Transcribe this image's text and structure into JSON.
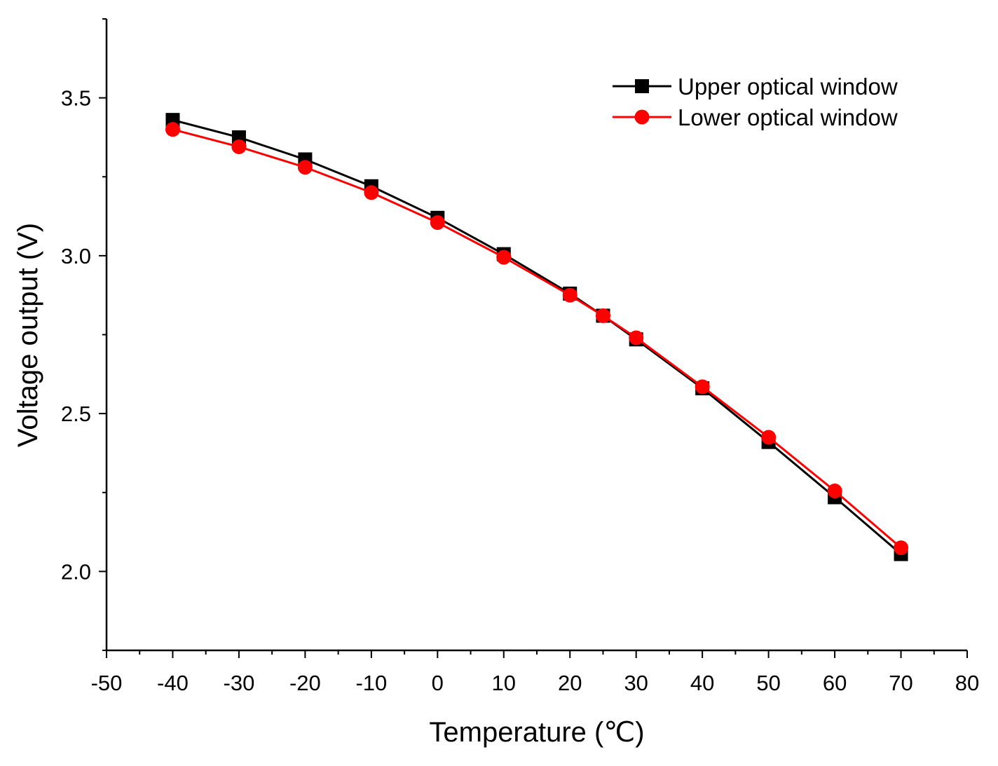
{
  "chart_data": {
    "type": "line",
    "title": "",
    "xlabel": "Temperature (℃)",
    "ylabel": "Voltage output (V)",
    "xlim": [
      -50,
      80
    ],
    "ylim": [
      1.75,
      3.75
    ],
    "x_ticks": [
      -50,
      -40,
      -30,
      -20,
      -10,
      0,
      10,
      20,
      30,
      40,
      50,
      60,
      70,
      80
    ],
    "x_tick_labels": [
      "-50",
      "-40",
      "-30",
      "-20",
      "-10",
      "0",
      "10",
      "20",
      "30",
      "40",
      "50",
      "60",
      "70",
      "80"
    ],
    "y_ticks": [
      2.0,
      2.5,
      3.0,
      3.5
    ],
    "y_tick_labels": [
      "2.0",
      "2.5",
      "3.0",
      "3.5"
    ],
    "grid": false,
    "legend_position": "top-right",
    "x": [
      -40,
      -30,
      -20,
      -10,
      0,
      10,
      20,
      25,
      30,
      40,
      50,
      60,
      70
    ],
    "series": [
      {
        "name": "Upper optical window",
        "color": "#000000",
        "marker": "square",
        "values": [
          3.43,
          3.375,
          3.305,
          3.22,
          3.12,
          3.005,
          2.88,
          2.81,
          2.735,
          2.58,
          2.41,
          2.235,
          2.055
        ]
      },
      {
        "name": "Lower optical window",
        "color": "#ff0000",
        "marker": "circle",
        "values": [
          3.4,
          3.345,
          3.28,
          3.2,
          3.105,
          2.995,
          2.875,
          2.81,
          2.74,
          2.585,
          2.425,
          2.255,
          2.075
        ]
      }
    ]
  }
}
